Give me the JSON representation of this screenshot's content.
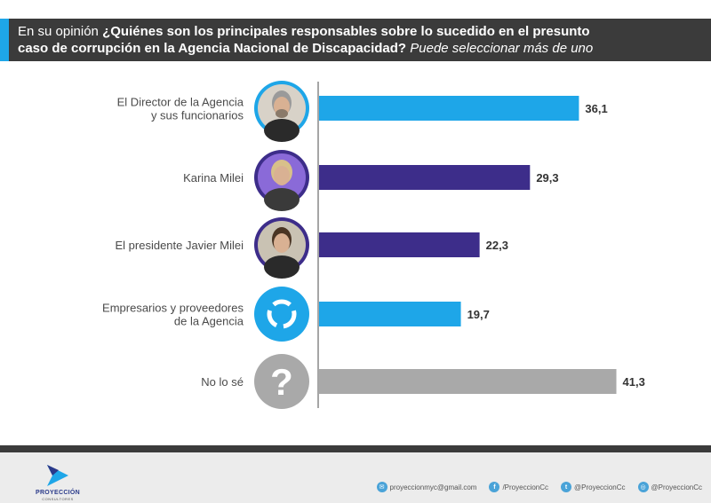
{
  "header": {
    "lead": "En su opinión ",
    "question": "¿Quiénes son los principales responsables sobre lo sucedido en el presunto caso de corrupción en la Agencia Nacional de Discapacidad?",
    "hint": " Puede seleccionar más de uno"
  },
  "colors": {
    "cyan": "#1ea6e8",
    "purple": "#3d2d8a",
    "gray": "#a9a9a9",
    "header_bg": "#3b3b3b"
  },
  "chart_data": {
    "type": "bar",
    "orientation": "horizontal",
    "xlim": [
      0,
      50
    ],
    "categories": [
      [
        "El Director de la Agencia",
        "y sus funcionarios"
      ],
      [
        "Karina Milei"
      ],
      [
        "El presidente Javier Milei"
      ],
      [
        "Empresarios y proveedores",
        "de la Agencia"
      ],
      [
        "No lo sé"
      ]
    ],
    "values": [
      36.1,
      29.3,
      22.3,
      19.7,
      41.3
    ],
    "value_labels": [
      "36,1",
      "29,3",
      "22,3",
      "19,7",
      "41,3"
    ],
    "bar_colors": [
      "cyan",
      "purple",
      "purple",
      "cyan",
      "gray"
    ],
    "icons": [
      "person-photo-icon",
      "person-photo-icon",
      "person-photo-icon",
      "company-logo-icon",
      "question-mark-icon"
    ]
  },
  "footer": {
    "brand": "PROYECCIÓN",
    "brand_sub": "CONSULTORES",
    "contacts": [
      {
        "icon": "email-icon",
        "glyph": "✉",
        "text": "proyeccionmyc@gmail.com"
      },
      {
        "icon": "facebook-icon",
        "glyph": "f",
        "text": "/ProyeccionCc"
      },
      {
        "icon": "twitter-icon",
        "glyph": "t",
        "text": "@ProyeccionCc"
      },
      {
        "icon": "instagram-icon",
        "glyph": "◎",
        "text": "@ProyeccionCc"
      }
    ]
  }
}
